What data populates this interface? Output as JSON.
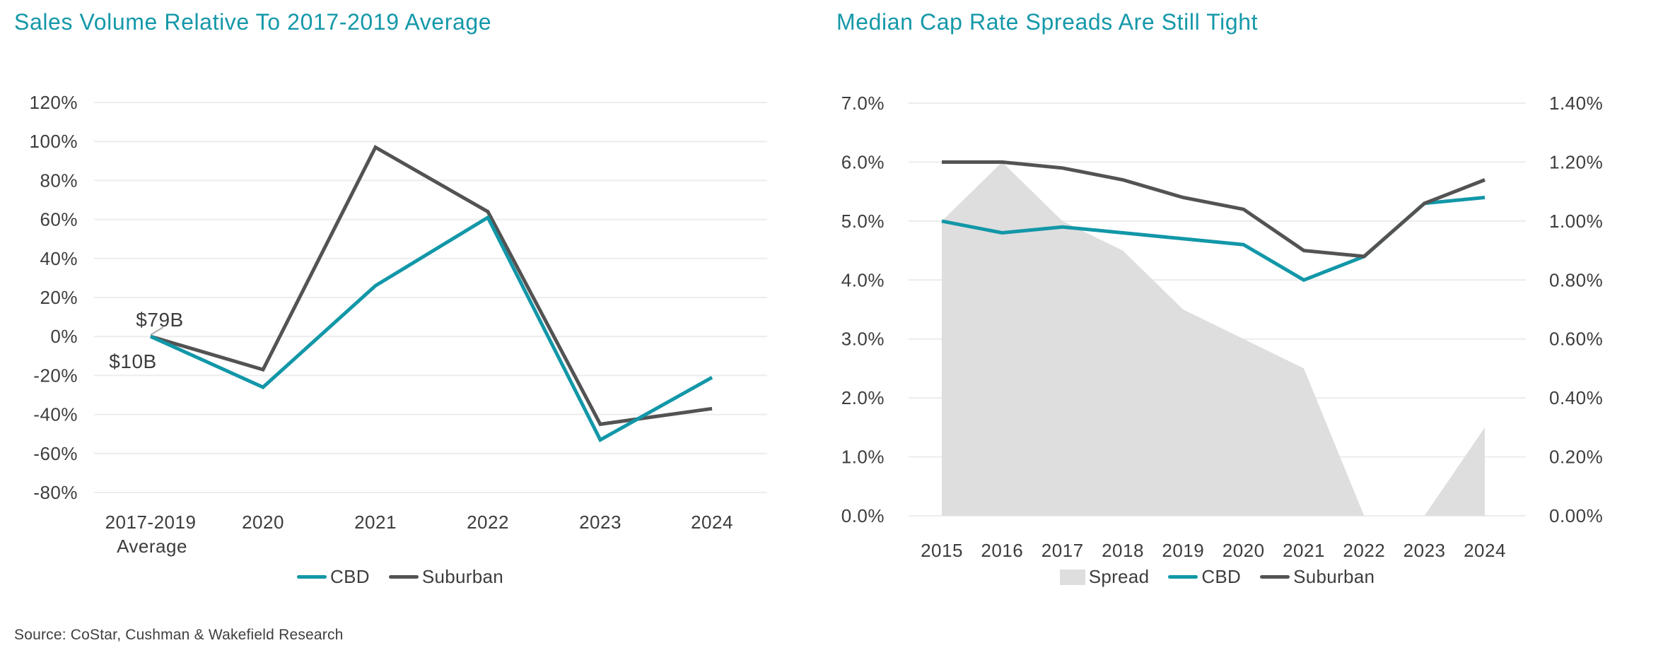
{
  "source_note": "Source: CoStar, Cushman & Wakefield Research",
  "colors": {
    "title_teal": "#1598A9",
    "accent_teal": "#1297A8",
    "dark_gray": "#535353",
    "spread_gray": "#DEDEDE",
    "grid": "#ECECEC",
    "text": "#3D3D3D",
    "leader_line": "#ABABAB"
  },
  "chart_data": [
    {
      "id": "sales-volume",
      "type": "line",
      "title": "Sales Volume Relative To 2017-2019 Average",
      "categories": [
        "2017-2019 Average",
        "2020",
        "2021",
        "2022",
        "2023",
        "2024"
      ],
      "series": [
        {
          "name": "CBD",
          "style": "line",
          "color": "#1297A8",
          "values": [
            0,
            -26,
            26,
            61,
            -53,
            -21
          ]
        },
        {
          "name": "Suburban",
          "style": "line",
          "color": "#535353",
          "values": [
            0,
            -17,
            97,
            64,
            -45,
            -37
          ]
        }
      ],
      "ylim": [
        -80,
        120
      ],
      "grid": true,
      "legend_position": "bottom",
      "yticks": {
        "values": [
          120,
          100,
          80,
          60,
          40,
          20,
          0,
          -20,
          -40,
          -60,
          -80
        ],
        "labels": [
          "120%",
          "100%",
          "80%",
          "60%",
          "40%",
          "20%",
          "0%",
          "-20%",
          "-40%",
          "-60%",
          "-80%"
        ]
      },
      "annotations": [
        {
          "text": "$79B",
          "refers_to": "Suburban 2017-2019 average volume"
        },
        {
          "text": "$10B",
          "refers_to": "CBD 2017-2019 average volume"
        }
      ]
    },
    {
      "id": "cap-rate-spreads",
      "type": "line-area-combo",
      "title": "Median Cap Rate Spreads Are Still Tight",
      "categories": [
        "2015",
        "2016",
        "2017",
        "2018",
        "2019",
        "2020",
        "2021",
        "2022",
        "2023",
        "2024"
      ],
      "series": [
        {
          "name": "Spread",
          "style": "area",
          "axis": "right",
          "color": "#DEDEDE",
          "values": [
            1.0,
            1.2,
            1.0,
            0.9,
            0.7,
            0.6,
            0.5,
            0.0,
            0.0,
            0.3
          ]
        },
        {
          "name": "CBD",
          "style": "line",
          "axis": "left",
          "color": "#1297A8",
          "values": [
            5.0,
            4.8,
            4.9,
            4.8,
            4.7,
            4.6,
            4.0,
            4.4,
            5.3,
            5.4
          ]
        },
        {
          "name": "Suburban",
          "style": "line",
          "axis": "left",
          "color": "#535353",
          "values": [
            6.0,
            6.0,
            5.9,
            5.7,
            5.4,
            5.2,
            4.5,
            4.4,
            5.3,
            5.7
          ]
        }
      ],
      "left_axis": {
        "lim": [
          0,
          7
        ],
        "tick_values": [
          7,
          6,
          5,
          4,
          3,
          2,
          1,
          0
        ],
        "tick_labels": [
          "7.0%",
          "6.0%",
          "5.0%",
          "4.0%",
          "3.0%",
          "2.0%",
          "1.0%",
          "0.0%"
        ]
      },
      "right_axis": {
        "lim": [
          0,
          1.4
        ],
        "tick_values": [
          1.4,
          1.2,
          1.0,
          0.8,
          0.6,
          0.4,
          0.2,
          0.0
        ],
        "tick_labels": [
          "1.40%",
          "1.20%",
          "1.00%",
          "0.80%",
          "0.60%",
          "0.40%",
          "0.20%",
          "0.00%"
        ]
      },
      "grid": true,
      "legend_position": "bottom"
    }
  ]
}
